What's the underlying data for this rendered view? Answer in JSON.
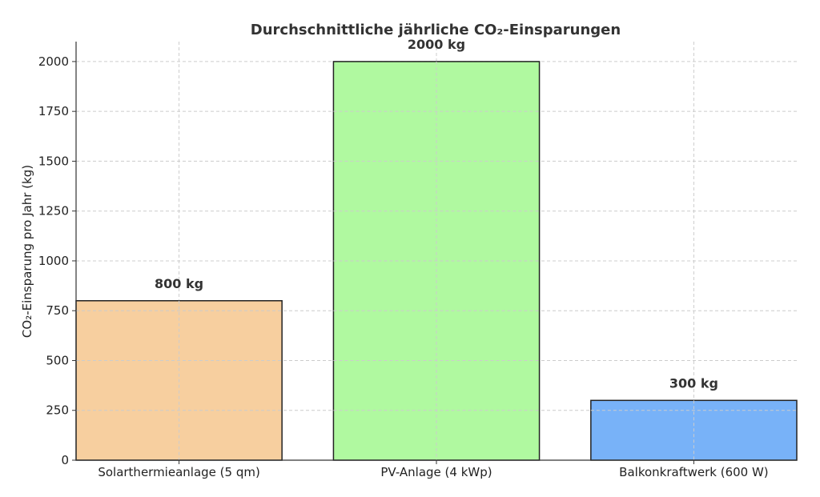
{
  "chart_data": {
    "type": "bar",
    "title": "Durchschnittliche jährliche CO₂-Einsparungen",
    "xlabel": "",
    "ylabel": "CO₂-Einsparung pro Jahr (kg)",
    "categories": [
      "Solarthermieanlage (5 qm)",
      "PV-Anlage (4 kWp)",
      "Balkonkraftwerk (600 W)"
    ],
    "values": [
      800,
      2000,
      300
    ],
    "value_labels": [
      "800 kg",
      "2000 kg",
      "300 kg"
    ],
    "colors": [
      "#f7cf9f",
      "#b0f9a0",
      "#78b2f8"
    ],
    "edge_color": "#222222",
    "ylim": [
      0,
      2100
    ],
    "yticks": [
      0,
      250,
      500,
      750,
      1000,
      1250,
      1500,
      1750,
      2000
    ],
    "grid": true
  }
}
